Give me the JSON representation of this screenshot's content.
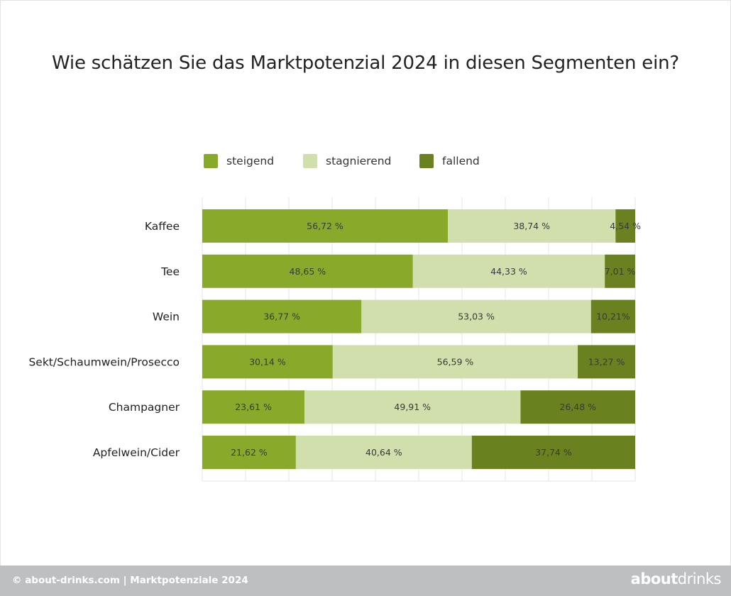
{
  "colors": {
    "steigend": "#88a92a",
    "stagnierend": "#d1dfad",
    "fallend": "#6a811f",
    "grid": "#e4e4e4",
    "label": "#3a3a3a",
    "footer_bg": "#bdbfc1"
  },
  "chart_data": {
    "type": "bar",
    "orientation": "horizontal",
    "stacked": true,
    "title": "Wie schätzen Sie das Marktpotenzial 2024 in diesen Segmenten ein?",
    "categories": [
      "Kaffee",
      "Tee",
      "Wein",
      "Sekt/Schaumwein/Prosecco",
      "Champagner",
      "Apfelwein/Cider"
    ],
    "series": [
      {
        "name": "steigend",
        "values": [
          56.72,
          48.65,
          36.77,
          30.14,
          23.61,
          21.62
        ],
        "labels": [
          "56,72 %",
          "48,65 %",
          "36,77 %",
          "30,14 %",
          "23,61 %",
          "21,62 %"
        ]
      },
      {
        "name": "stagnierend",
        "values": [
          38.74,
          44.33,
          53.03,
          56.59,
          49.91,
          40.64
        ],
        "labels": [
          "38,74 %",
          "44,33 %",
          "53,03 %",
          "56,59 %",
          "49,91 %",
          "40,64 %"
        ]
      },
      {
        "name": "fallend",
        "values": [
          4.54,
          7.01,
          10.21,
          13.27,
          26.48,
          37.74
        ],
        "labels": [
          "4,54 %",
          "7,01 %",
          "10,21%",
          "13,27 %",
          "26,48 %",
          "37,74 %"
        ]
      }
    ],
    "legend_position": "top",
    "xlim": [
      0,
      100
    ],
    "grid": true
  },
  "footer": {
    "source_text": "© about-drinks.com  |  Marktpotenziale 2024",
    "logo_bold": "about",
    "logo_light": "drinks"
  }
}
